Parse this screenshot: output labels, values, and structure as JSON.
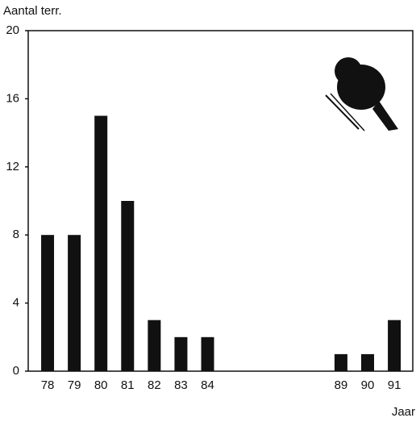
{
  "chart_data": {
    "type": "bar",
    "y_label": "Aantal terr.",
    "x_label": "Jaar",
    "categories": [
      "78",
      "79",
      "80",
      "81",
      "82",
      "83",
      "84",
      null,
      null,
      null,
      null,
      "89",
      "90",
      "91"
    ],
    "values": [
      8,
      8,
      15,
      10,
      3,
      2,
      2,
      null,
      null,
      null,
      null,
      1,
      1,
      3
    ],
    "color": "#111111",
    "ylim": [
      0,
      20
    ],
    "yticks": [
      0,
      4,
      8,
      12,
      16,
      20
    ]
  }
}
